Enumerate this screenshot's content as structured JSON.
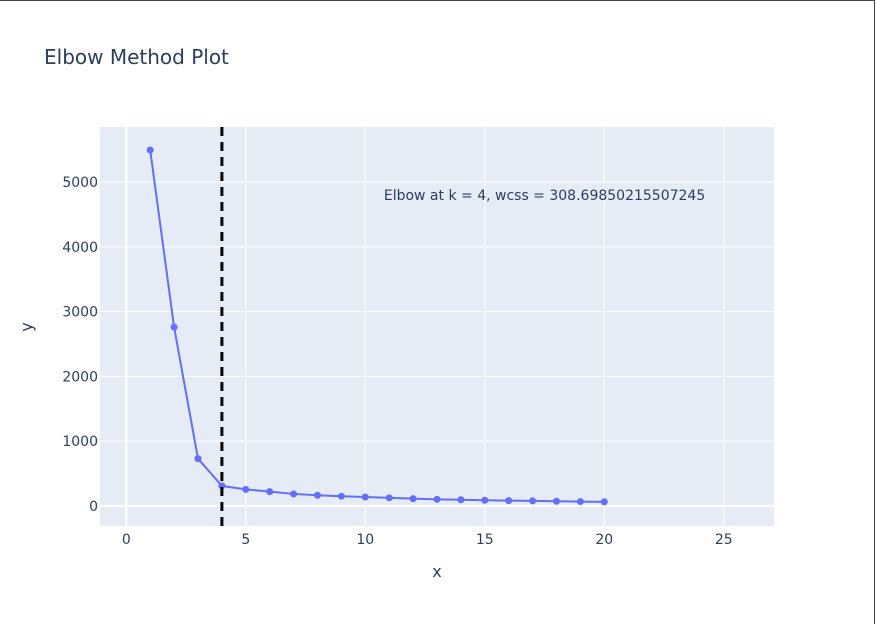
{
  "chart_data": {
    "type": "line",
    "title": "Elbow Method Plot",
    "xlabel": "x",
    "ylabel": "y",
    "xlim": [
      -1.1,
      27.1
    ],
    "ylim": [
      -310,
      5850
    ],
    "x_ticks": [
      0,
      5,
      10,
      15,
      20,
      25
    ],
    "y_ticks": [
      0,
      1000,
      2000,
      3000,
      4000,
      5000
    ],
    "grid": true,
    "series": [
      {
        "mode": "lines+markers",
        "color": "#636efa",
        "x": [
          1,
          2,
          3,
          4,
          5,
          6,
          7,
          8,
          9,
          10,
          11,
          12,
          13,
          14,
          15,
          16,
          17,
          18,
          19,
          20
        ],
        "y": [
          5495,
          2760,
          730,
          309,
          255,
          220,
          185,
          165,
          150,
          138,
          125,
          112,
          102,
          95,
          88,
          82,
          77,
          72,
          67,
          62
        ]
      }
    ],
    "vline": {
      "x": 4,
      "color": "#000000",
      "dash": "dash"
    },
    "annotation": {
      "text": "Elbow at k = 4, wcss = 308.69850215507245",
      "x": 17.5,
      "y": 4725
    },
    "plot_bg": "#e5ecf6",
    "grid_color": "#ffffff",
    "text_color": "#2a3f5f"
  }
}
